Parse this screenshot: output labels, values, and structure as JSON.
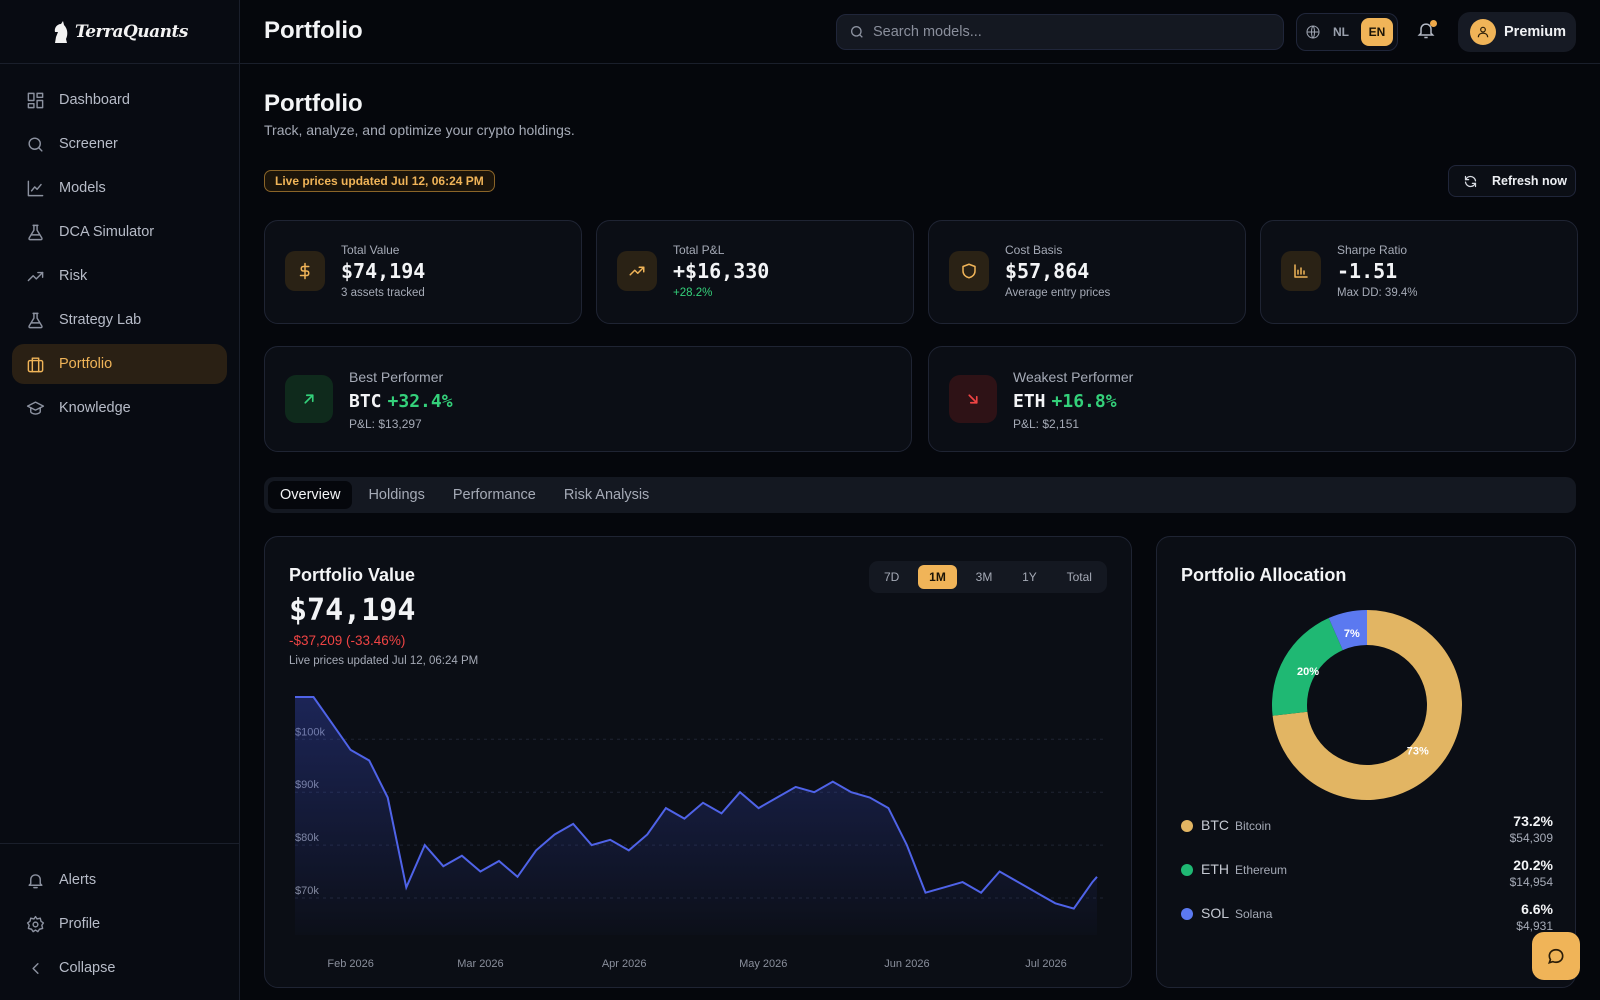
{
  "brand": {
    "name": "TerraQuants"
  },
  "topbar": {
    "title": "Portfolio",
    "search_placeholder": "Search models...",
    "lang_nl": "NL",
    "lang_en": "EN",
    "premium_label": "Premium"
  },
  "sidebar": {
    "items": [
      {
        "label": "Dashboard",
        "icon": "grid-icon"
      },
      {
        "label": "Screener",
        "icon": "search-icon"
      },
      {
        "label": "Models",
        "icon": "line-chart-icon"
      },
      {
        "label": "DCA Simulator",
        "icon": "flask-icon"
      },
      {
        "label": "Risk",
        "icon": "trending-icon"
      },
      {
        "label": "Strategy Lab",
        "icon": "flask-icon"
      },
      {
        "label": "Portfolio",
        "icon": "briefcase-icon",
        "active": true
      },
      {
        "label": "Knowledge",
        "icon": "graduation-cap-icon"
      }
    ],
    "bottom": [
      {
        "label": "Alerts",
        "icon": "bell-icon"
      },
      {
        "label": "Profile",
        "icon": "gear-icon"
      },
      {
        "label": "Collapse",
        "icon": "chevron-left-icon"
      }
    ]
  },
  "page": {
    "title": "Portfolio",
    "subtitle": "Track, analyze, and optimize your crypto holdings.",
    "live_badge": "Live prices updated Jul 12, 06:24 PM",
    "refresh_label": "Refresh now"
  },
  "stats": [
    {
      "label": "Total Value",
      "value": "$74,194",
      "sub": "3 assets tracked",
      "icon": "dollar-icon"
    },
    {
      "label": "Total P&L",
      "value": "+$16,330",
      "sub": "+28.2%",
      "icon": "trending-up-icon"
    },
    {
      "label": "Cost Basis",
      "value": "$57,864",
      "sub": "Average entry prices",
      "icon": "shield-icon"
    },
    {
      "label": "Sharpe Ratio",
      "value": "-1.51",
      "sub": "Max DD: 39.4%",
      "icon": "bar-chart-icon"
    }
  ],
  "best": {
    "label": "Best Performer",
    "symbol": "BTC",
    "change": "+32.4%",
    "pnl": "P&L: $13,297"
  },
  "worst": {
    "label": "Weakest Performer",
    "symbol": "ETH",
    "change": "+16.8%",
    "pnl": "P&L: $2,151"
  },
  "tabs": [
    "Overview",
    "Holdings",
    "Performance",
    "Risk Analysis"
  ],
  "value_card": {
    "title": "Portfolio Value",
    "value": "$74,194",
    "change": "-$37,209 (-33.46%)",
    "updated": "Live prices updated Jul 12, 06:24 PM",
    "ranges": [
      "7D",
      "1M",
      "3M",
      "1Y",
      "Total"
    ],
    "active_range": "1M"
  },
  "chart_data": {
    "type": "area",
    "title": "Portfolio Value",
    "y_ticks": [
      "$70k",
      "$80k",
      "$90k",
      "$100k"
    ],
    "x_ticks": [
      "Feb 2026",
      "Mar 2026",
      "Apr 2026",
      "May 2026",
      "Jun 2026",
      "Jul 2026"
    ],
    "ylim": [
      63000,
      108000
    ],
    "x": [
      "2026-01-20",
      "2026-01-24",
      "2026-01-28",
      "2026-02-01",
      "2026-02-05",
      "2026-02-09",
      "2026-02-13",
      "2026-02-17",
      "2026-02-21",
      "2026-02-25",
      "2026-03-01",
      "2026-03-05",
      "2026-03-09",
      "2026-03-13",
      "2026-03-17",
      "2026-03-21",
      "2026-03-25",
      "2026-03-29",
      "2026-04-02",
      "2026-04-06",
      "2026-04-10",
      "2026-04-14",
      "2026-04-18",
      "2026-04-22",
      "2026-04-26",
      "2026-04-30",
      "2026-05-04",
      "2026-05-08",
      "2026-05-12",
      "2026-05-16",
      "2026-05-20",
      "2026-05-24",
      "2026-05-28",
      "2026-06-01",
      "2026-06-05",
      "2026-06-09",
      "2026-06-13",
      "2026-06-17",
      "2026-06-21",
      "2026-06-25",
      "2026-06-29",
      "2026-07-03",
      "2026-07-07",
      "2026-07-11",
      "2026-07-12"
    ],
    "series": [
      {
        "color": "#4f63e8",
        "values": [
          112000,
          108000,
          103000,
          98000,
          96000,
          89000,
          72000,
          80000,
          76000,
          78000,
          75000,
          77000,
          74000,
          79000,
          82000,
          84000,
          80000,
          81000,
          79000,
          82000,
          87000,
          85000,
          88000,
          86000,
          90000,
          87000,
          89000,
          91000,
          90000,
          92000,
          90000,
          89000,
          87000,
          80000,
          71000,
          72000,
          73000,
          71000,
          75000,
          73000,
          71000,
          69000,
          68000,
          73000,
          74000
        ]
      }
    ]
  },
  "allocation": {
    "title": "Portfolio Allocation",
    "slices": [
      {
        "symbol": "BTC",
        "name": "Bitcoin",
        "percent": 73.2,
        "pct_label": "73.2%",
        "donut_label": "73%",
        "amount": "$54,309",
        "color": "#e2b563"
      },
      {
        "symbol": "ETH",
        "name": "Ethereum",
        "percent": 20.2,
        "pct_label": "20.2%",
        "donut_label": "20%",
        "amount": "$14,954",
        "color": "#1fb873"
      },
      {
        "symbol": "SOL",
        "name": "Solana",
        "percent": 6.6,
        "pct_label": "6.6%",
        "donut_label": "7%",
        "amount": "$4,931",
        "color": "#5b79f0"
      }
    ]
  }
}
